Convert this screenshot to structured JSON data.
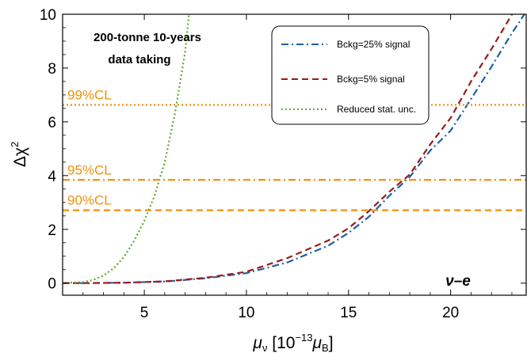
{
  "chart_data": {
    "type": "line",
    "xlabel": "μν [10−13μB]",
    "ylabel": "Δχ2",
    "xlim": [
      1,
      23.7
    ],
    "ylim": [
      -0.45,
      10
    ],
    "xticks": [
      "5",
      "10",
      "15",
      "20"
    ],
    "yticks": [
      "0",
      "2",
      "4",
      "6",
      "8",
      "10"
    ],
    "annotation_lines": [
      "200-tonne 10-years",
      "data taking"
    ],
    "corner_label": "ν–e",
    "confidence_levels": [
      {
        "label": "99%CL",
        "value": 6.63,
        "style": "dotted"
      },
      {
        "label": "95%CL",
        "value": 3.84,
        "style": "dashdot"
      },
      {
        "label": "90%CL",
        "value": 2.71,
        "style": "dashed"
      }
    ],
    "legend_placement": "top-right",
    "grid": false,
    "series": [
      {
        "name": "Bckg=25% signal",
        "color": "#1f5fa6",
        "style": "dashdot",
        "x": [
          1,
          2,
          4,
          6,
          8,
          10,
          12,
          14,
          15,
          16,
          17,
          18,
          19,
          20,
          21,
          22,
          23,
          23.7
        ],
        "y": [
          0,
          0.001,
          0.015,
          0.06,
          0.18,
          0.37,
          0.77,
          1.39,
          1.87,
          2.47,
          3.25,
          3.95,
          4.93,
          5.67,
          6.85,
          8.05,
          9.3,
          10.1
        ]
      },
      {
        "name": "Bckg=5% signal",
        "color": "#9b1b1b",
        "style": "dashed",
        "x": [
          1,
          2,
          4,
          6,
          8,
          10,
          12,
          14,
          15,
          16,
          17,
          18,
          19,
          20,
          21,
          22,
          23
        ],
        "y": [
          0,
          0.001,
          0.015,
          0.065,
          0.2,
          0.42,
          0.93,
          1.58,
          2.04,
          2.68,
          3.4,
          4.04,
          5.16,
          6.14,
          7.5,
          8.71,
          9.99
        ]
      },
      {
        "name": "Reduced stat. unc.",
        "color": "#5aaa2e",
        "style": "dotted",
        "x": [
          1,
          2,
          2.5,
          3,
          3.5,
          4,
          4.5,
          5,
          5.5,
          6,
          6.5,
          7,
          7.2
        ],
        "y": [
          0,
          0.04,
          0.12,
          0.28,
          0.55,
          0.97,
          1.57,
          2.32,
          3.25,
          4.5,
          6.3,
          8.6,
          10.1
        ]
      }
    ]
  }
}
